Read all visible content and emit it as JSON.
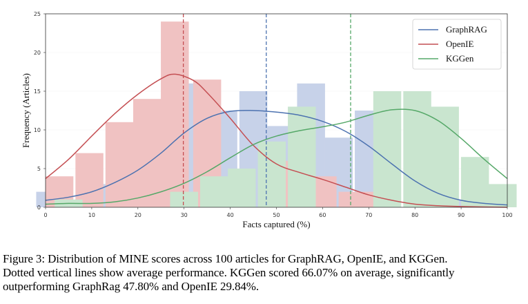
{
  "chart_data": {
    "type": "bar",
    "title": "",
    "xlabel": "Facts captured (%)",
    "ylabel": "Frequency (Articles)",
    "xlim": [
      0,
      100
    ],
    "ylim": [
      0,
      25
    ],
    "xticks": [
      "0",
      "10",
      "20",
      "30",
      "40",
      "50",
      "60",
      "70",
      "80",
      "90",
      "100"
    ],
    "yticks": [
      "0",
      "5",
      "10",
      "15",
      "20",
      "25"
    ],
    "legend_position": "top-right",
    "bin_width": 6.2,
    "series": [
      {
        "name": "GraphRAG",
        "color": "#4C72B0",
        "bar_color": "#c7d2e9",
        "bins": [
          {
            "x": 1,
            "value": 2
          },
          {
            "x": 14,
            "value": 3
          },
          {
            "x": 20,
            "value": 4
          },
          {
            "x": 26,
            "value": 4
          },
          {
            "x": 32,
            "value": 16
          },
          {
            "x": 38.5,
            "value": 12.5
          },
          {
            "x": 45,
            "value": 15
          },
          {
            "x": 51,
            "value": 10.5
          },
          {
            "x": 57.5,
            "value": 16
          },
          {
            "x": 63.5,
            "value": 9
          },
          {
            "x": 70,
            "value": 12.5
          },
          {
            "x": 89,
            "value": 1
          }
        ],
        "kde": [
          [
            0,
            0.9
          ],
          [
            5,
            1.3
          ],
          [
            10,
            2.0
          ],
          [
            15,
            3.2
          ],
          [
            20,
            4.8
          ],
          [
            25,
            7.0
          ],
          [
            30,
            9.6
          ],
          [
            35,
            11.5
          ],
          [
            40,
            12.4
          ],
          [
            45,
            12.5
          ],
          [
            50,
            12.3
          ],
          [
            55,
            11.9
          ],
          [
            60,
            11.1
          ],
          [
            65,
            9.8
          ],
          [
            70,
            7.9
          ],
          [
            75,
            5.6
          ],
          [
            80,
            3.4
          ],
          [
            85,
            1.8
          ],
          [
            90,
            0.9
          ],
          [
            95,
            0.5
          ],
          [
            100,
            0.3
          ]
        ],
        "mean": 47.8
      },
      {
        "name": "OpenIE",
        "color": "#C44E52",
        "bar_color": "#f0c2c2",
        "bins": [
          {
            "x": 3,
            "value": 4
          },
          {
            "x": 9.5,
            "value": 7
          },
          {
            "x": 16,
            "value": 11
          },
          {
            "x": 22,
            "value": 14
          },
          {
            "x": 28,
            "value": 24
          },
          {
            "x": 35,
            "value": 16.5
          },
          {
            "x": 54,
            "value": 6
          },
          {
            "x": 60,
            "value": 4
          },
          {
            "x": 66.5,
            "value": 2
          },
          {
            "x": 72.5,
            "value": 2
          }
        ],
        "kde": [
          [
            0,
            3.7
          ],
          [
            5,
            6.2
          ],
          [
            10,
            9.2
          ],
          [
            15,
            12.1
          ],
          [
            20,
            14.6
          ],
          [
            25,
            16.6
          ],
          [
            28,
            17.2
          ],
          [
            32,
            16.4
          ],
          [
            35,
            14.8
          ],
          [
            40,
            11.5
          ],
          [
            45,
            8.0
          ],
          [
            50,
            5.6
          ],
          [
            55,
            4.5
          ],
          [
            60,
            3.6
          ],
          [
            65,
            2.6
          ],
          [
            70,
            1.6
          ],
          [
            75,
            0.9
          ],
          [
            80,
            0.4
          ],
          [
            85,
            0.2
          ],
          [
            90,
            0.1
          ],
          [
            100,
            0.0
          ]
        ],
        "mean": 29.84
      },
      {
        "name": "KGGen",
        "color": "#55A868",
        "bar_color": "#c9e5cf",
        "bins": [
          {
            "x": 5,
            "value": 1
          },
          {
            "x": 30,
            "value": 2
          },
          {
            "x": 36.5,
            "value": 4
          },
          {
            "x": 42.5,
            "value": 5
          },
          {
            "x": 49,
            "value": 8.5
          },
          {
            "x": 55.5,
            "value": 13
          },
          {
            "x": 74,
            "value": 15
          },
          {
            "x": 80.5,
            "value": 15
          },
          {
            "x": 86.5,
            "value": 13
          },
          {
            "x": 93,
            "value": 6.5
          },
          {
            "x": 99,
            "value": 3
          }
        ],
        "kde": [
          [
            0,
            0.4
          ],
          [
            5,
            0.5
          ],
          [
            10,
            0.5
          ],
          [
            15,
            0.7
          ],
          [
            20,
            1.2
          ],
          [
            25,
            2.0
          ],
          [
            30,
            3.1
          ],
          [
            35,
            4.6
          ],
          [
            40,
            6.4
          ],
          [
            45,
            8.1
          ],
          [
            50,
            9.2
          ],
          [
            55,
            9.9
          ],
          [
            60,
            10.4
          ],
          [
            65,
            11.0
          ],
          [
            70,
            11.9
          ],
          [
            75,
            12.6
          ],
          [
            80,
            12.5
          ],
          [
            85,
            11.2
          ],
          [
            90,
            8.9
          ],
          [
            95,
            6.2
          ],
          [
            100,
            3.7
          ]
        ],
        "mean": 66.07
      }
    ]
  },
  "caption": {
    "line1": "Figure 3:  Distribution of MINE scores across 100 articles for GraphRAG, OpenIE, and KGGen.",
    "line2": "Dotted vertical lines show average performance.  KGGen scored 66.07% on average, significantly",
    "line3": "outperforming GraphRag 47.80% and OpenIE 29.84%."
  }
}
